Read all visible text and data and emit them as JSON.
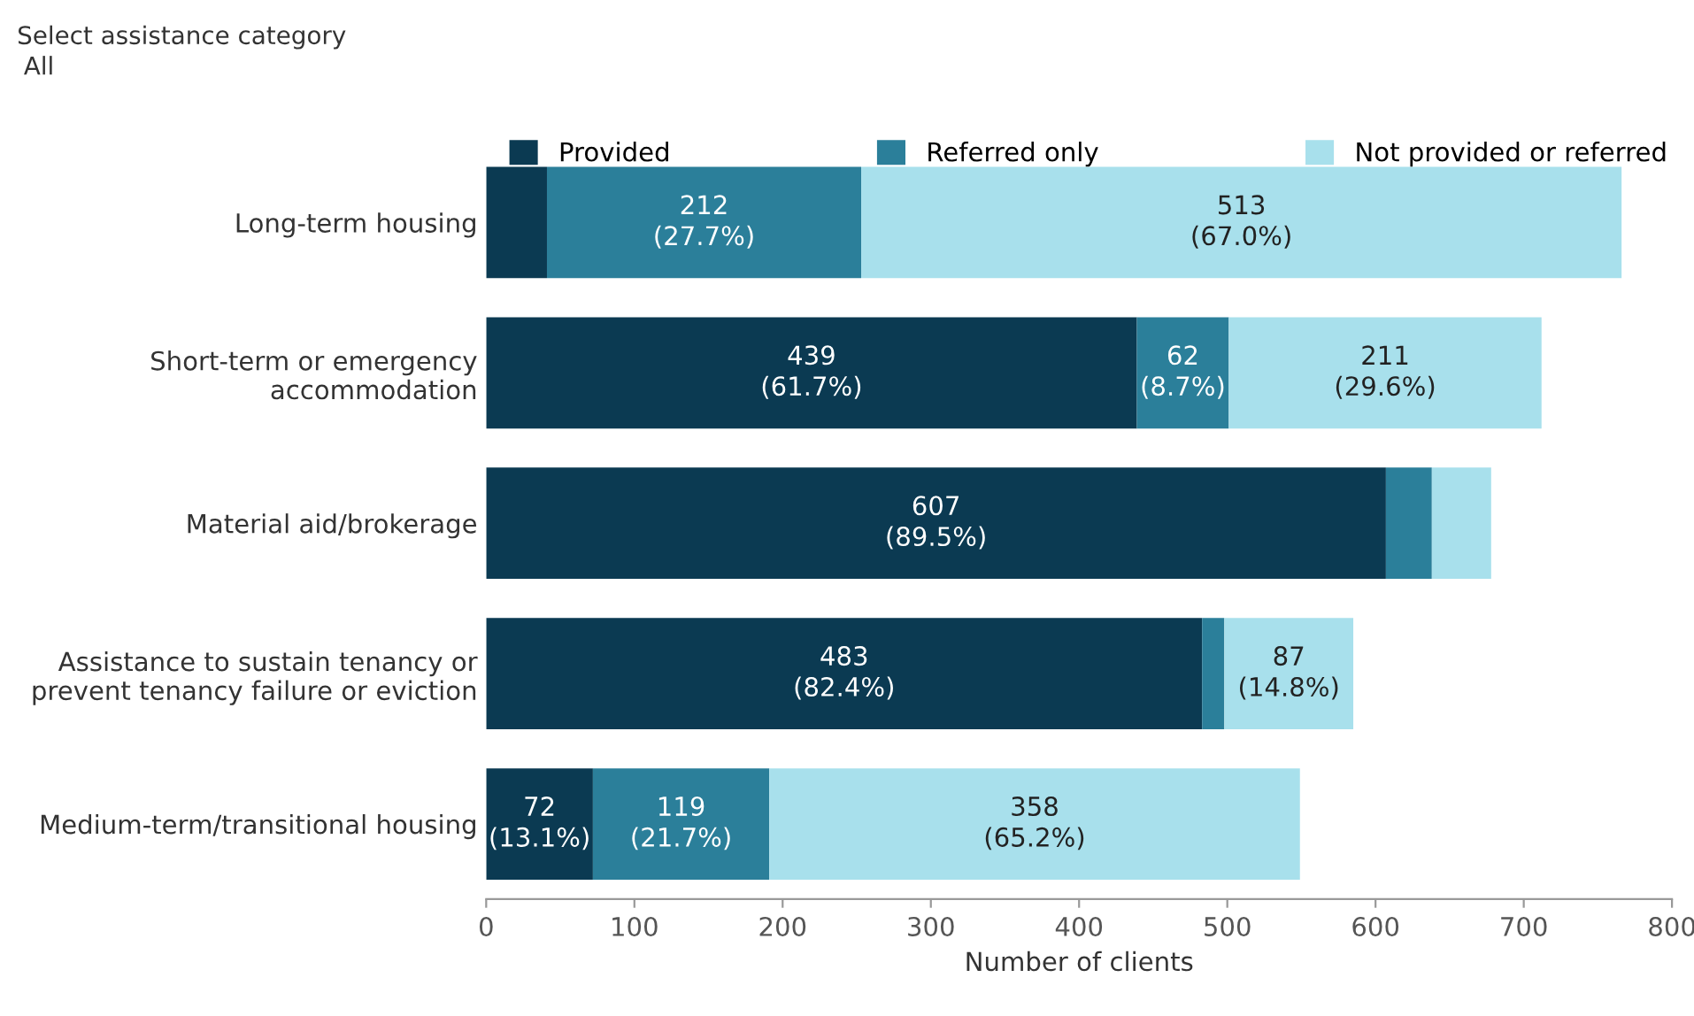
{
  "chart_data": {
    "type": "bar",
    "orientation": "horizontal",
    "stacked": true,
    "xlabel": "Number of clients",
    "categories": [
      "Long-term housing",
      "Short-term or emergency\naccommodation",
      "Material aid/brokerage",
      "Assistance to sustain tenancy or\nprevent tenancy failure or eviction",
      "Medium-term/transitional housing"
    ],
    "series": [
      {
        "name": "Provided",
        "color": "#0b3a52",
        "values": [
          41,
          439,
          607,
          483,
          72
        ],
        "value_labels": [
          null,
          "439\n(61.7%)",
          "607\n(89.5%)",
          "483\n(82.4%)",
          "72\n(13.1%)"
        ]
      },
      {
        "name": "Referred only",
        "color": "#2b7f9a",
        "values": [
          212,
          62,
          31,
          15,
          119
        ],
        "value_labels": [
          "212\n(27.7%)",
          "62\n(8.7%)",
          null,
          null,
          "119\n(21.7%)"
        ]
      },
      {
        "name": "Not provided or referred",
        "color": "#a8e0ec",
        "values": [
          513,
          211,
          40,
          87,
          358
        ],
        "value_labels": [
          "513\n(67.0%)",
          "211\n(29.6%)",
          null,
          "87\n(14.8%)",
          "358\n(65.2%)"
        ]
      }
    ],
    "xlim": [
      0,
      800
    ],
    "xticks": [
      0,
      100,
      200,
      300,
      400,
      500,
      600,
      700,
      800
    ],
    "grid": false,
    "legend": "top",
    "annotations": [
      "Select assistance category",
      "All"
    ]
  }
}
